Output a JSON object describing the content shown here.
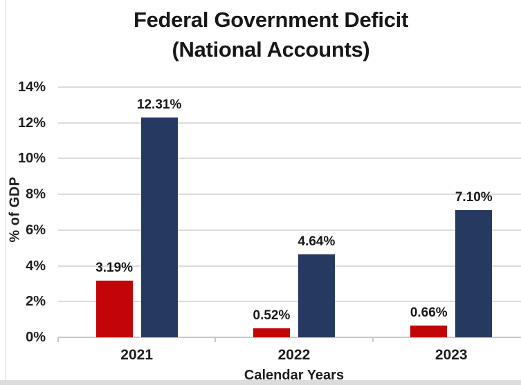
{
  "title": {
    "line1": "Federal Government Deficit",
    "line2": "(National Accounts)"
  },
  "chart_data": {
    "type": "bar",
    "title": "Federal Government Deficit (National Accounts)",
    "categories": [
      "2021",
      "2022",
      "2023"
    ],
    "series": [
      {
        "name": "red-bars",
        "color": "#c10508",
        "values": [
          3.19,
          0.52,
          0.66
        ],
        "data_labels": [
          "3.19%",
          "0.52%",
          "0.66%"
        ]
      },
      {
        "name": "navy-bars",
        "color": "#263a61",
        "values": [
          12.31,
          4.64,
          7.1
        ],
        "data_labels": [
          "12.31%",
          "4.64%",
          "7.10%"
        ]
      }
    ],
    "xlabel": "Calendar Years",
    "ylabel": "% of GDP",
    "ylim": [
      0,
      14
    ],
    "yticks": [
      0,
      2,
      4,
      6,
      8,
      10,
      12,
      14
    ],
    "ytick_labels": [
      "0%",
      "2%",
      "4%",
      "6%",
      "8%",
      "10%",
      "12%",
      "14%"
    ],
    "grid": true,
    "legend": false
  },
  "palette": {
    "background": "#ffffff",
    "text": "#1a1a1a",
    "gridline": "#dcdcdc",
    "axis_line": "#c9c9c9",
    "tick_mark": "#c9c9c9"
  }
}
